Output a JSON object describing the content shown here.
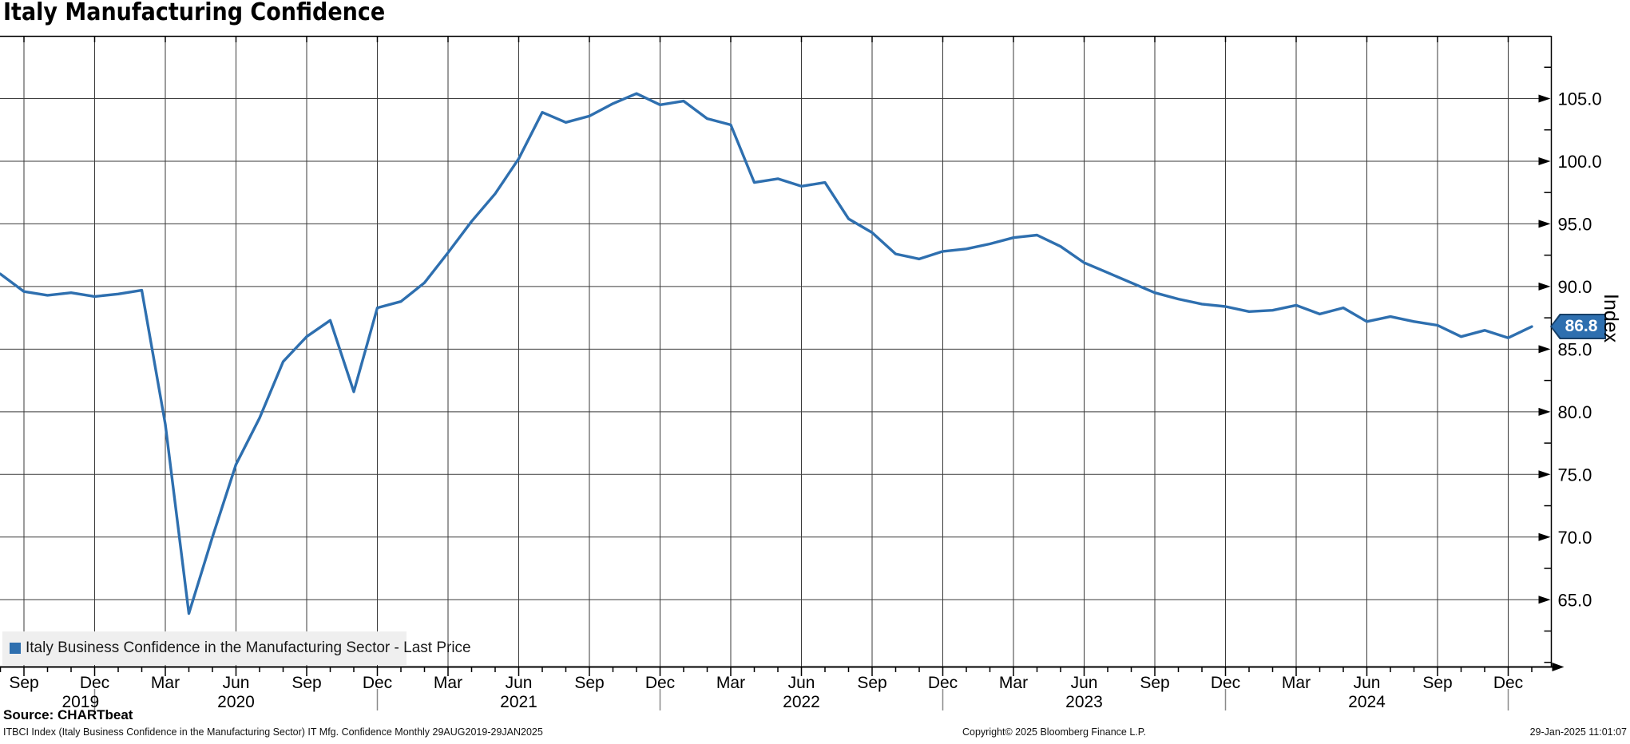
{
  "title": "Italy Manufacturing Confidence",
  "y_axis_title": "Index",
  "badge": {
    "value": "86.8"
  },
  "legend": {
    "label": "Italy Business Confidence in the Manufacturing Sector - Last Price"
  },
  "footer": {
    "source": "Source: CHARTbeat",
    "description": "ITBCI Index (Italy Business Confidence in the Manufacturing Sector) IT Mfg. Confidence  Monthly 29AUG2019-29JAN2025",
    "copyright": "Copyright© 2025 Bloomberg Finance L.P.",
    "datetime": "29-Jan-2025 11:01:07"
  },
  "colors": {
    "line": "#2E6FAF",
    "badge_bg": "#2E6FAF",
    "badge_border": "#173F66",
    "badge_text": "#FFFFFF",
    "grid": "#3a3a3a",
    "axis": "#000000",
    "year_separator": "#8a8a8a",
    "legend_bg": "#EFEFEF",
    "text": "#000000"
  },
  "chart_data": {
    "type": "line",
    "title": "Italy Manufacturing Confidence",
    "series": [
      {
        "name": "Italy Business Confidence in the Manufacturing Sector - Last Price",
        "values": [
          91.0,
          89.6,
          89.3,
          89.5,
          89.2,
          89.4,
          89.7,
          79.0,
          63.9,
          70.0,
          75.8,
          79.5,
          84.0,
          86.0,
          87.3,
          81.6,
          88.3,
          88.8,
          90.3,
          92.7,
          95.2,
          97.4,
          100.2,
          103.9,
          103.1,
          103.6,
          104.6,
          105.4,
          104.5,
          104.8,
          103.4,
          102.9,
          98.3,
          98.6,
          98.0,
          98.3,
          95.4,
          94.3,
          92.6,
          92.2,
          92.8,
          93.0,
          93.4,
          93.9,
          94.1,
          93.2,
          91.9,
          91.1,
          90.3,
          89.5,
          89.0,
          88.6,
          88.4,
          88.0,
          88.1,
          88.5,
          87.8,
          88.3,
          87.2,
          87.6,
          87.2,
          86.9,
          86.0,
          86.5,
          85.9,
          86.8
        ]
      }
    ],
    "x": [
      "Aug 2019",
      "Sep 2019",
      "Oct 2019",
      "Nov 2019",
      "Dec 2019",
      "Jan 2020",
      "Feb 2020",
      "Mar 2020",
      "Apr 2020",
      "May 2020",
      "Jun 2020",
      "Jul 2020",
      "Aug 2020",
      "Sep 2020",
      "Oct 2020",
      "Nov 2020",
      "Dec 2020",
      "Jan 2021",
      "Feb 2021",
      "Mar 2021",
      "Apr 2021",
      "May 2021",
      "Jun 2021",
      "Jul 2021",
      "Aug 2021",
      "Sep 2021",
      "Oct 2021",
      "Nov 2021",
      "Dec 2021",
      "Jan 2022",
      "Feb 2022",
      "Mar 2022",
      "Apr 2022",
      "May 2022",
      "Jun 2022",
      "Jul 2022",
      "Aug 2022",
      "Sep 2022",
      "Oct 2022",
      "Nov 2022",
      "Dec 2022",
      "Jan 2023",
      "Feb 2023",
      "Mar 2023",
      "Apr 2023",
      "May 2023",
      "Jun 2023",
      "Jul 2023",
      "Aug 2023",
      "Sep 2023",
      "Oct 2023",
      "Nov 2023",
      "Dec 2023",
      "Jan 2024",
      "Feb 2024",
      "Mar 2024",
      "Apr 2024",
      "May 2024",
      "Jun 2024",
      "Jul 2024",
      "Aug 2024",
      "Sep 2024",
      "Oct 2024",
      "Nov 2024",
      "Dec 2024",
      "Jan 2025"
    ],
    "x_ticks": [
      {
        "i": 1,
        "label": "Sep"
      },
      {
        "i": 4,
        "label": "Dec"
      },
      {
        "i": 7,
        "label": "Mar"
      },
      {
        "i": 10,
        "label": "Jun"
      },
      {
        "i": 13,
        "label": "Sep"
      },
      {
        "i": 16,
        "label": "Dec"
      },
      {
        "i": 19,
        "label": "Mar"
      },
      {
        "i": 22,
        "label": "Jun"
      },
      {
        "i": 25,
        "label": "Sep"
      },
      {
        "i": 28,
        "label": "Dec"
      },
      {
        "i": 31,
        "label": "Mar"
      },
      {
        "i": 34,
        "label": "Jun"
      },
      {
        "i": 37,
        "label": "Sep"
      },
      {
        "i": 40,
        "label": "Dec"
      },
      {
        "i": 43,
        "label": "Mar"
      },
      {
        "i": 46,
        "label": "Jun"
      },
      {
        "i": 49,
        "label": "Sep"
      },
      {
        "i": 52,
        "label": "Dec"
      },
      {
        "i": 55,
        "label": "Mar"
      },
      {
        "i": 58,
        "label": "Jun"
      },
      {
        "i": 61,
        "label": "Sep"
      },
      {
        "i": 64,
        "label": "Dec"
      }
    ],
    "x_years": [
      {
        "i": 3.4,
        "label": "2019"
      },
      {
        "i": 10,
        "label": "2020"
      },
      {
        "i": 22,
        "label": "2021"
      },
      {
        "i": 34,
        "label": "2022"
      },
      {
        "i": 46,
        "label": "2023"
      },
      {
        "i": 58,
        "label": "2024"
      }
    ],
    "year_separator_i": [
      4,
      16,
      28,
      40,
      52,
      64
    ],
    "y_ticks": [
      65,
      70,
      75,
      80,
      85,
      90,
      95,
      100,
      105
    ],
    "y_minor_step": 2.5,
    "ylim": [
      59.6,
      110.0
    ],
    "xlabel": "",
    "ylabel": "Index",
    "last_price": 86.8,
    "grid": true,
    "legend_position": "bottom-left"
  }
}
